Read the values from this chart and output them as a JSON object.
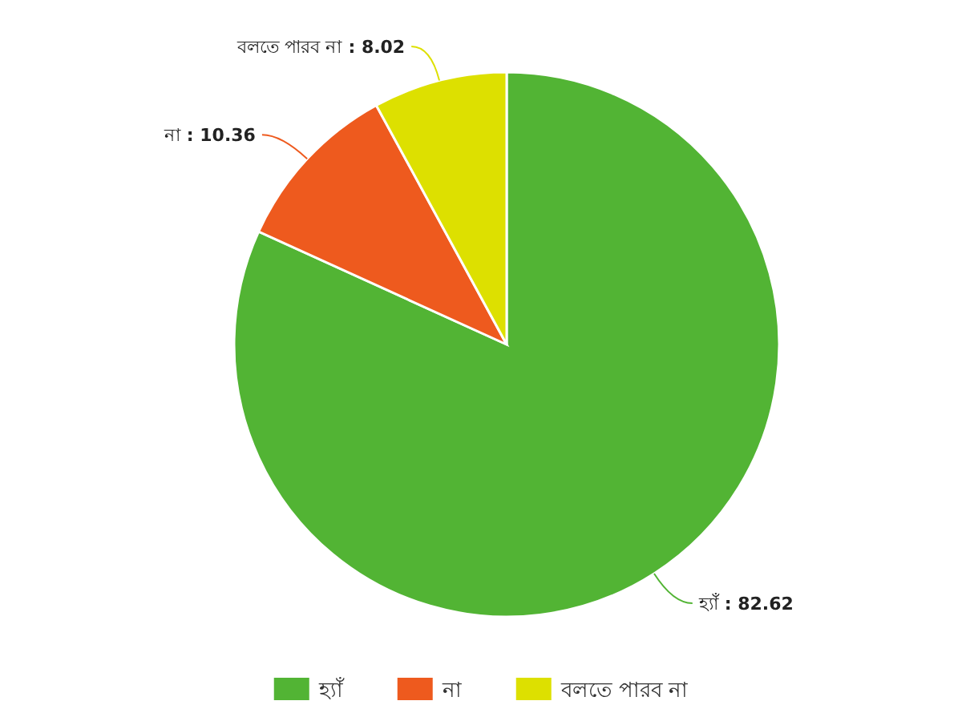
{
  "chart_data": {
    "type": "pie",
    "categories": [
      "হ্যাঁ",
      "না",
      "বলতে পারব না"
    ],
    "values": [
      82.62,
      10.36,
      8.02
    ],
    "colors": [
      "#52b434",
      "#ee5a1e",
      "#dde000"
    ],
    "value_labels": [
      ": 82.62",
      ": 10.36",
      ": 8.02"
    ],
    "legend": "bottom"
  }
}
